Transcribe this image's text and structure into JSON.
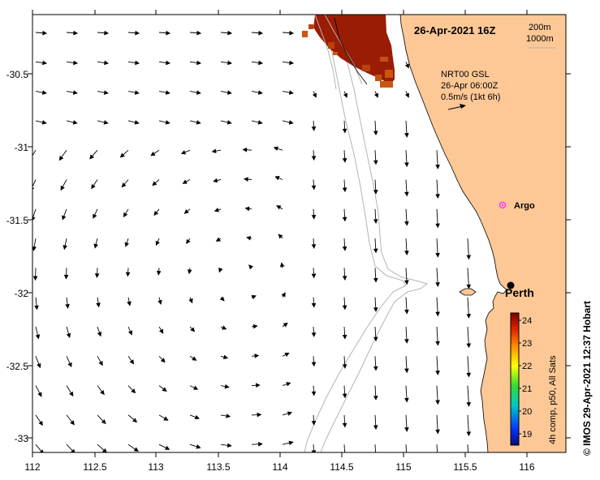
{
  "map": {
    "date_label": "26-Apr-2021 16Z",
    "contour_labels": [
      "200m",
      "1000m"
    ],
    "current_info": [
      "NRT00 GSL",
      "26-Apr 06:00Z",
      "0.5m/s (1kt 6h)"
    ],
    "x_ticks": [
      "112",
      "112.5",
      "113",
      "113.5",
      "114",
      "114.5",
      "115",
      "115.5",
      "116"
    ],
    "y_ticks": [
      "-30.5",
      "-31",
      "-31.5",
      "-32",
      "-32.5",
      "-33"
    ],
    "places": [
      {
        "name": "Argo",
        "kind": "float"
      },
      {
        "name": "Perth",
        "kind": "city"
      }
    ],
    "colorbar": {
      "ticks": [
        "24",
        "23",
        "22",
        "21",
        "20",
        "19"
      ],
      "label": "4h comp, p50, All Sats"
    },
    "credit": "© IMOS 29-Apr-2021 12:37 Hobart",
    "colors": {
      "land": "#fdc896",
      "coast": "#000000",
      "isobath": "#b4b4b4",
      "sst_hot": "#9a1c05",
      "sst_warm": "#c9570f",
      "argo": "#ff33ff"
    }
  }
}
